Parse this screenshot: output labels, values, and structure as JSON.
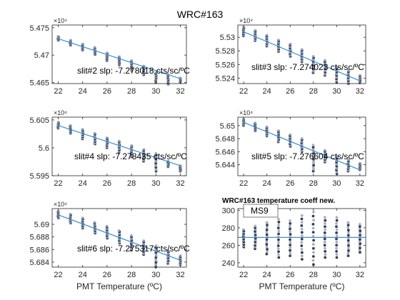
{
  "figure": {
    "title": "WRC#163",
    "xlabel": "PMT Temperature (ºC)",
    "colors": {
      "fit_line": "#3a8fd0",
      "points_dark": "#1a1a2e",
      "points_light": "#8fa4c0",
      "axes": "#262626"
    }
  },
  "chart_data": [
    {
      "id": "slit2",
      "type": "scatter",
      "annotation": "slit#2 slp: -7.278018 cts/sc/ºC",
      "xlim": [
        21.5,
        32.5
      ],
      "xticks": [
        22,
        24,
        26,
        28,
        30,
        32
      ],
      "ylim": [
        54648,
        54755
      ],
      "yticks": [
        54650,
        54700,
        54750
      ],
      "ytick_labels": [
        "5.465",
        "5.47",
        "5.475"
      ],
      "exponent": "×10⁴",
      "slope": -7.278018,
      "fit": {
        "x": [
          22,
          32
        ],
        "y": [
          54730,
          54657
        ]
      },
      "x": [
        22,
        23,
        24,
        25,
        26,
        27,
        28,
        29,
        30,
        31,
        32
      ],
      "y_range": [
        [
          54727,
          54734
        ],
        [
          54718,
          54727
        ],
        [
          54709,
          54720
        ],
        [
          54701,
          54714
        ],
        [
          54690,
          54704
        ],
        [
          54682,
          54697
        ],
        [
          54672,
          54690
        ],
        [
          54664,
          54680
        ],
        [
          54650,
          54668
        ],
        [
          54647,
          54664
        ],
        [
          54650,
          54658
        ]
      ]
    },
    {
      "id": "slit3",
      "type": "scatter",
      "annotation": "slit#3 slp: -7.274023 cts/sc/ºC",
      "xlim": [
        21.5,
        32.5
      ],
      "xticks": [
        22,
        24,
        26,
        28,
        30,
        32
      ],
      "ylim": [
        55232,
        55318
      ],
      "yticks": [
        55240,
        55260,
        55280,
        55300
      ],
      "ytick_labels": [
        "5.524",
        "5.526",
        "5.528",
        "5.53"
      ],
      "exponent": "×10⁴",
      "slope": -7.274023,
      "fit": {
        "x": [
          22,
          32
        ],
        "y": [
          55308,
          55236
        ]
      },
      "x": [
        22,
        23,
        24,
        25,
        26,
        27,
        28,
        29,
        30,
        31,
        32
      ],
      "y_range": [
        [
          55302,
          55315
        ],
        [
          55295,
          55310
        ],
        [
          55287,
          55303
        ],
        [
          55279,
          55296
        ],
        [
          55272,
          55290
        ],
        [
          55264,
          55282
        ],
        [
          55248,
          55272
        ],
        [
          55244,
          55266
        ],
        [
          55234,
          55256
        ],
        [
          55232,
          55251
        ],
        [
          55233,
          55244
        ]
      ]
    },
    {
      "id": "slit4",
      "type": "scatter",
      "annotation": "slit#4 slp: -7.278435 cts/sc/ºC",
      "xlim": [
        21.5,
        32.5
      ],
      "xticks": [
        22,
        24,
        26,
        28,
        30,
        32
      ],
      "ylim": [
        55950,
        56055
      ],
      "yticks": [
        55950,
        56000,
        56050
      ],
      "ytick_labels": [
        "5.595",
        "5.6",
        "5.605"
      ],
      "exponent": "×10⁴",
      "slope": -7.278435,
      "fit": {
        "x": [
          22,
          32
        ],
        "y": [
          56040,
          55968
        ]
      },
      "x": [
        22,
        23,
        24,
        25,
        26,
        27,
        28,
        29,
        30,
        31,
        32
      ],
      "y_range": [
        [
          56035,
          56046
        ],
        [
          56026,
          56040
        ],
        [
          56016,
          56033
        ],
        [
          56007,
          56026
        ],
        [
          56000,
          56018
        ],
        [
          55992,
          56012
        ],
        [
          55984,
          56004
        ],
        [
          55976,
          55997
        ],
        [
          55958,
          55990
        ],
        [
          55966,
          55976
        ],
        [
          55958,
          55968
        ]
      ]
    },
    {
      "id": "slit5",
      "type": "scatter",
      "annotation": "slit#5 slp: -7.276604 cts/sc/ºC",
      "xlim": [
        21.5,
        32.5
      ],
      "xticks": [
        22,
        24,
        26,
        28,
        30,
        32
      ],
      "ylim": [
        56423,
        56513
      ],
      "yticks": [
        56440,
        56460,
        56480,
        56500
      ],
      "ytick_labels": [
        "5.644",
        "5.646",
        "5.648",
        "5.65"
      ],
      "exponent": "×10⁴",
      "slope": -7.276604,
      "fit": {
        "x": [
          22,
          32
        ],
        "y": [
          56505,
          56432
        ]
      },
      "x": [
        22,
        23,
        24,
        25,
        26,
        27,
        28,
        29,
        30,
        31,
        32
      ],
      "y_range": [
        [
          56500,
          56510
        ],
        [
          56492,
          56504
        ],
        [
          56484,
          56498
        ],
        [
          56475,
          56492
        ],
        [
          56468,
          56486
        ],
        [
          56460,
          56480
        ],
        [
          56430,
          56470
        ],
        [
          56444,
          56462
        ],
        [
          56426,
          56452
        ],
        [
          56430,
          56447
        ],
        [
          56432,
          56442
        ]
      ]
    },
    {
      "id": "slit6",
      "type": "scatter",
      "annotation": "slit#6 slp: -7.275317 cts/sc/ºC",
      "xlim": [
        21.5,
        32.5
      ],
      "xticks": [
        22,
        24,
        26,
        28,
        30,
        32
      ],
      "ylim": [
        56832,
        56925
      ],
      "yticks": [
        56840,
        56860,
        56880,
        56900
      ],
      "ytick_labels": [
        "5.684",
        "5.686",
        "5.688",
        "5.69"
      ],
      "exponent": "×10⁴",
      "slope": -7.275317,
      "fit": {
        "x": [
          22,
          32
        ],
        "y": [
          56915,
          56843
        ]
      },
      "x": [
        22,
        23,
        24,
        25,
        26,
        27,
        28,
        29,
        30,
        31,
        32
      ],
      "y_range": [
        [
          56910,
          56921
        ],
        [
          56902,
          56916
        ],
        [
          56894,
          56910
        ],
        [
          56886,
          56903
        ],
        [
          56878,
          56897
        ],
        [
          56870,
          56890
        ],
        [
          56859,
          56882
        ],
        [
          56852,
          56874
        ],
        [
          56832,
          56866
        ],
        [
          56838,
          56858
        ],
        [
          56836,
          56850
        ]
      ]
    },
    {
      "id": "tempcoeff",
      "type": "scatter",
      "title": "WRC#163 temperature coeff new.",
      "legend": [
        "MS9"
      ],
      "xlim": [
        21.5,
        32.5
      ],
      "xticks": [
        22,
        24,
        26,
        28,
        30,
        32
      ],
      "ylim": [
        235,
        302
      ],
      "yticks": [
        240,
        260,
        280,
        300
      ],
      "ytick_labels": [
        "240",
        "260",
        "280",
        "300"
      ],
      "fit": {
        "x": [
          21.5,
          32.5
        ],
        "y": [
          269,
          269
        ]
      },
      "x": [
        22,
        23,
        24,
        25,
        26,
        27,
        28,
        29,
        30,
        31,
        32
      ],
      "y_range": [
        [
          258,
          278
        ],
        [
          256,
          282
        ],
        [
          250,
          286
        ],
        [
          246,
          290
        ],
        [
          248,
          288
        ],
        [
          244,
          294
        ],
        [
          238,
          298
        ],
        [
          246,
          292
        ],
        [
          246,
          292
        ],
        [
          248,
          286
        ],
        [
          252,
          284
        ]
      ]
    }
  ]
}
